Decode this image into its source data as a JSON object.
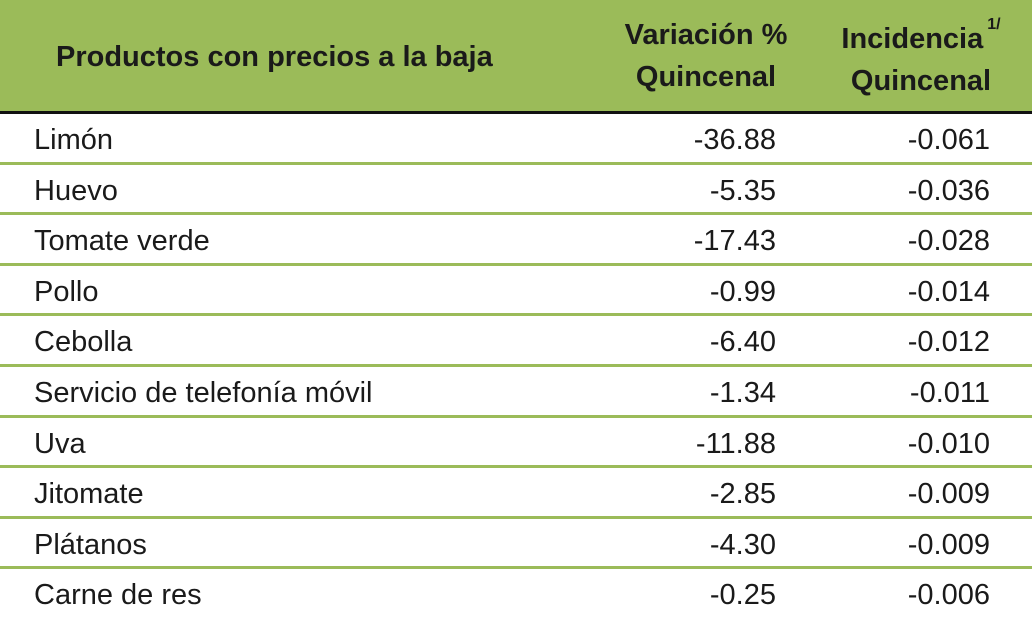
{
  "table": {
    "headers": {
      "product": "Productos con precios a la baja",
      "variation_line1": "Variación %",
      "variation_line2": "Quincenal",
      "incidence_line1": "Incidencia",
      "incidence_sup": "1/",
      "incidence_line2": "Quincenal"
    },
    "rows": [
      {
        "product": "Limón",
        "variation": "-36.88",
        "incidence": "-0.061"
      },
      {
        "product": "Huevo",
        "variation": "-5.35",
        "incidence": "-0.036"
      },
      {
        "product": "Tomate verde",
        "variation": "-17.43",
        "incidence": "-0.028"
      },
      {
        "product": "Pollo",
        "variation": "-0.99",
        "incidence": "-0.014"
      },
      {
        "product": "Cebolla",
        "variation": "-6.40",
        "incidence": "-0.012"
      },
      {
        "product": "Servicio de telefonía móvil",
        "variation": "-1.34",
        "incidence": "-0.011"
      },
      {
        "product": "Uva",
        "variation": "-11.88",
        "incidence": "-0.010"
      },
      {
        "product": "Jitomate",
        "variation": "-2.85",
        "incidence": "-0.009"
      },
      {
        "product": "Plátanos",
        "variation": "-4.30",
        "incidence": "-0.009"
      },
      {
        "product": "Carne de res",
        "variation": "-0.25",
        "incidence": "-0.006"
      }
    ],
    "colors": {
      "header_bg": "#9bbb59",
      "row_separator": "#9bbb59",
      "header_rule": "#111111",
      "text": "#1a1a1a"
    }
  }
}
